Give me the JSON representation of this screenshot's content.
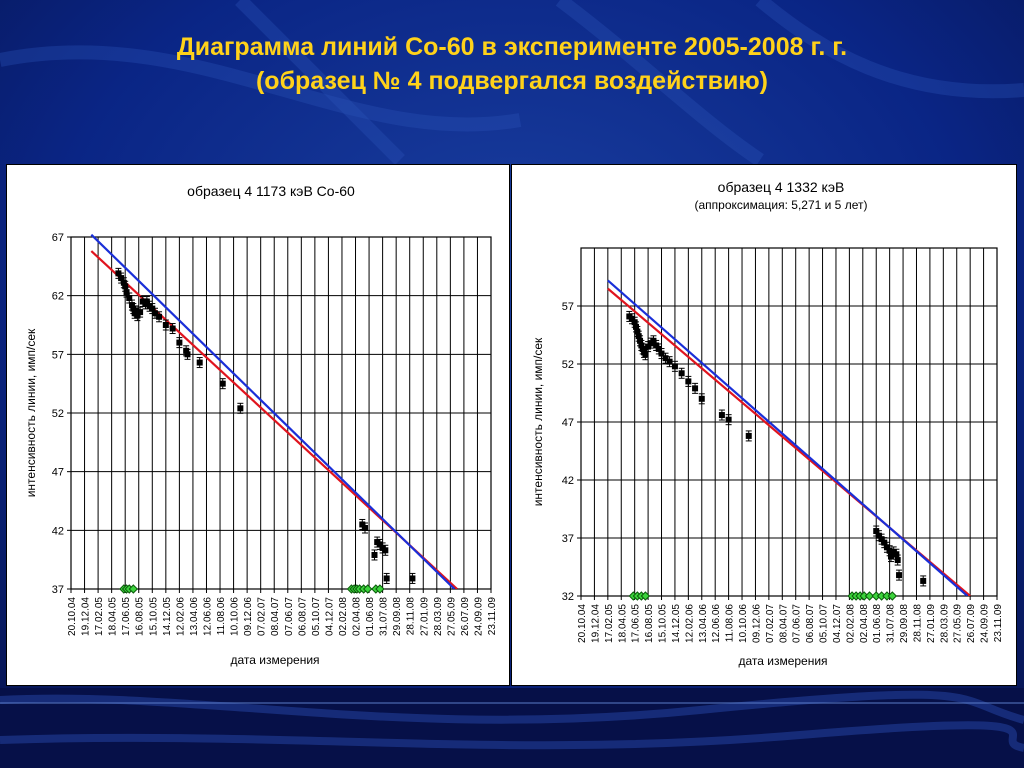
{
  "slide": {
    "title_line1": "Диаграмма линий Со-60 в эксперименте 2005-2008 г. г.",
    "title_line2": "(образец № 4 подвергался воздействию)"
  },
  "colors": {
    "background": "#0a1f73",
    "title": "#ffd21a",
    "fit_red": "#e0141e",
    "fit_blue": "#1a2fd8",
    "marker": "#000000",
    "marker_green": "#3cd33c"
  },
  "chart_data": [
    {
      "type": "scatter",
      "title": "образец 4 1173 кэВ Со-60",
      "subtitle": "",
      "xlabel": "дата измерения",
      "ylabel": "интенсивность линии, имп/сек",
      "x_ticks": [
        "20.10.04",
        "19.12.04",
        "17.02.05",
        "18.04.05",
        "17.06.05",
        "16.08.05",
        "15.10.05",
        "14.12.05",
        "12.02.06",
        "13.04.06",
        "12.06.06",
        "11.08.06",
        "10.10.06",
        "09.12.06",
        "07.02.07",
        "08.04.07",
        "07.06.07",
        "06.08.07",
        "05.10.07",
        "04.12.07",
        "02.02.08",
        "02.04.08",
        "01.06.08",
        "31.07.08",
        "29.09.08",
        "28.11.08",
        "27.01.09",
        "28.03.09",
        "27.05.09",
        "26.07.09",
        "24.09.09",
        "23.11.09"
      ],
      "y_ticks": [
        37,
        42,
        47,
        52,
        57,
        62,
        67
      ],
      "ylim": [
        37,
        67
      ],
      "grid": true,
      "fit_lines": [
        {
          "color": "red",
          "start": [
            1.5,
            65.8
          ],
          "end": [
            28.5,
            37.0
          ]
        },
        {
          "color": "blue",
          "start": [
            1.5,
            67.2
          ],
          "end": [
            28.3,
            37.0
          ]
        }
      ],
      "points": [
        [
          3.5,
          63.9
        ],
        [
          3.7,
          63.5
        ],
        [
          3.9,
          63.1
        ],
        [
          4.0,
          62.8
        ],
        [
          4.1,
          62.3
        ],
        [
          4.3,
          61.8
        ],
        [
          4.5,
          61.2
        ],
        [
          4.6,
          60.9
        ],
        [
          4.7,
          60.5
        ],
        [
          4.8,
          60.7
        ],
        [
          4.9,
          60.3
        ],
        [
          5.1,
          60.6
        ],
        [
          5.3,
          61.5
        ],
        [
          5.5,
          61.3
        ],
        [
          5.6,
          61.5
        ],
        [
          5.8,
          61.1
        ],
        [
          6.0,
          60.9
        ],
        [
          6.2,
          60.5
        ],
        [
          6.5,
          60.2
        ],
        [
          7.0,
          59.5
        ],
        [
          7.5,
          59.2
        ],
        [
          8.0,
          58.0
        ],
        [
          8.5,
          57.3
        ],
        [
          8.6,
          57.0
        ],
        [
          9.5,
          56.3
        ],
        [
          11.2,
          54.5
        ],
        [
          12.5,
          52.4
        ],
        [
          21.5,
          42.5
        ],
        [
          21.7,
          42.2
        ],
        [
          22.4,
          39.9
        ],
        [
          22.6,
          41.0
        ],
        [
          22.8,
          40.8
        ],
        [
          23.0,
          40.5
        ],
        [
          23.2,
          40.3
        ],
        [
          23.3,
          37.9
        ],
        [
          25.2,
          37.9
        ]
      ],
      "green_points": [
        [
          3.9,
          37
        ],
        [
          4.1,
          37
        ],
        [
          4.3,
          37
        ],
        [
          4.6,
          37
        ],
        [
          20.7,
          37
        ],
        [
          20.9,
          37
        ],
        [
          21.1,
          37
        ],
        [
          21.3,
          37
        ],
        [
          21.6,
          37
        ],
        [
          21.9,
          37
        ],
        [
          22.5,
          37
        ],
        [
          22.8,
          37
        ]
      ]
    },
    {
      "type": "scatter",
      "title": "образец 4 1332 кэВ",
      "subtitle": "(аппроксимация: 5,271 и 5 лет)",
      "xlabel": "дата измерения",
      "ylabel": "интенсивность линии, имп/сек",
      "x_ticks": [
        "20.10.04",
        "19.12.04",
        "17.02.05",
        "18.04.05",
        "17.06.05",
        "16.08.05",
        "15.10.05",
        "14.12.05",
        "12.02.06",
        "13.04.06",
        "12.06.06",
        "11.08.06",
        "10.10.06",
        "09.12.06",
        "07.02.07",
        "08.04.07",
        "07.06.07",
        "06.08.07",
        "05.10.07",
        "04.12.07",
        "02.02.08",
        "02.04.08",
        "01.06.08",
        "31.07.08",
        "29.09.08",
        "28.11.08",
        "27.01.09",
        "28.03.09",
        "27.05.09",
        "26.07.09",
        "24.09.09",
        "23.11.09"
      ],
      "y_ticks": [
        32,
        37,
        42,
        47,
        52,
        57
      ],
      "ylim": [
        32,
        62
      ],
      "grid": true,
      "fit_lines": [
        {
          "color": "red",
          "start": [
            2.0,
            58.5
          ],
          "end": [
            29.0,
            32.0
          ]
        },
        {
          "color": "blue",
          "start": [
            2.0,
            59.2
          ],
          "end": [
            28.8,
            32.0
          ]
        }
      ],
      "points": [
        [
          3.6,
          56.1
        ],
        [
          3.8,
          55.9
        ],
        [
          4.0,
          55.6
        ],
        [
          4.1,
          55.2
        ],
        [
          4.2,
          54.8
        ],
        [
          4.3,
          54.4
        ],
        [
          4.4,
          54.0
        ],
        [
          4.5,
          53.6
        ],
        [
          4.6,
          53.3
        ],
        [
          4.7,
          53.0
        ],
        [
          4.8,
          52.8
        ],
        [
          5.0,
          53.5
        ],
        [
          5.2,
          53.8
        ],
        [
          5.4,
          54.0
        ],
        [
          5.6,
          53.6
        ],
        [
          5.8,
          53.3
        ],
        [
          6.0,
          52.9
        ],
        [
          6.3,
          52.5
        ],
        [
          6.6,
          52.2
        ],
        [
          7.0,
          51.8
        ],
        [
          7.5,
          51.2
        ],
        [
          8.0,
          50.5
        ],
        [
          8.5,
          49.9
        ],
        [
          9.0,
          49.0
        ],
        [
          10.5,
          47.6
        ],
        [
          11.0,
          47.2
        ],
        [
          12.5,
          45.8
        ],
        [
          22.0,
          37.6
        ],
        [
          22.2,
          37.2
        ],
        [
          22.4,
          36.9
        ],
        [
          22.6,
          36.6
        ],
        [
          22.8,
          36.2
        ],
        [
          23.0,
          35.9
        ],
        [
          23.1,
          35.4
        ],
        [
          23.3,
          35.8
        ],
        [
          23.5,
          35.6
        ],
        [
          23.6,
          35.1
        ],
        [
          23.7,
          33.8
        ],
        [
          25.5,
          33.3
        ]
      ],
      "green_points": [
        [
          3.9,
          32
        ],
        [
          4.2,
          32
        ],
        [
          4.5,
          32
        ],
        [
          4.8,
          32
        ],
        [
          20.2,
          32
        ],
        [
          20.5,
          32
        ],
        [
          20.8,
          32
        ],
        [
          21.1,
          32
        ],
        [
          21.5,
          32
        ],
        [
          22.0,
          32
        ],
        [
          22.4,
          32
        ],
        [
          22.8,
          32
        ],
        [
          23.2,
          32
        ]
      ]
    }
  ]
}
